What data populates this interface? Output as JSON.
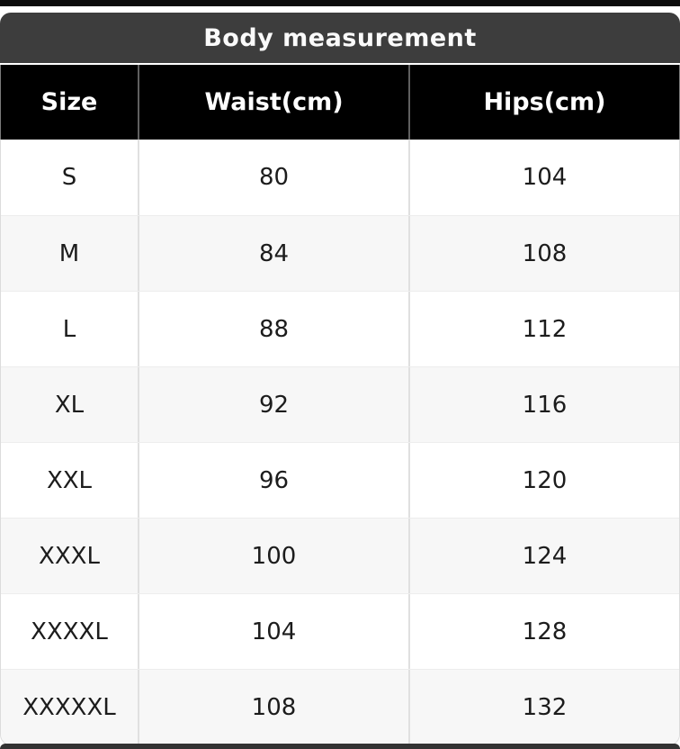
{
  "table": {
    "title": "Body measurement",
    "columns": [
      "Size",
      "Waist(cm)",
      "Hips(cm)"
    ],
    "rows": [
      [
        "S",
        "80",
        "104"
      ],
      [
        "M",
        "84",
        "108"
      ],
      [
        "L",
        "88",
        "112"
      ],
      [
        "XL",
        "92",
        "116"
      ],
      [
        "XXL",
        "96",
        "120"
      ],
      [
        "XXXL",
        "100",
        "124"
      ],
      [
        "XXXXL",
        "104",
        "128"
      ],
      [
        "XXXXXL",
        "108",
        "132"
      ]
    ]
  },
  "chart_data": {
    "type": "table",
    "title": "Body measurement",
    "columns": [
      "Size",
      "Waist(cm)",
      "Hips(cm)"
    ],
    "rows": [
      {
        "size": "S",
        "waist_cm": 80,
        "hips_cm": 104
      },
      {
        "size": "M",
        "waist_cm": 84,
        "hips_cm": 108
      },
      {
        "size": "L",
        "waist_cm": 88,
        "hips_cm": 112
      },
      {
        "size": "XL",
        "waist_cm": 92,
        "hips_cm": 116
      },
      {
        "size": "XXL",
        "waist_cm": 96,
        "hips_cm": 120
      },
      {
        "size": "XXXL",
        "waist_cm": 100,
        "hips_cm": 124
      },
      {
        "size": "XXXXL",
        "waist_cm": 104,
        "hips_cm": 128
      },
      {
        "size": "XXXXXL",
        "waist_cm": 108,
        "hips_cm": 132
      }
    ]
  },
  "colors": {
    "title_bar_bg": "#3d3d3d",
    "header_row_bg": "#000000",
    "alt_row_bg": "#f7f7f7",
    "body_separator": "#e0e0e0",
    "header_separator": "#5f5f5f",
    "top_strip": "#0b0b0b",
    "bottom_strip": "#333333",
    "text": "#1c1c1c"
  }
}
